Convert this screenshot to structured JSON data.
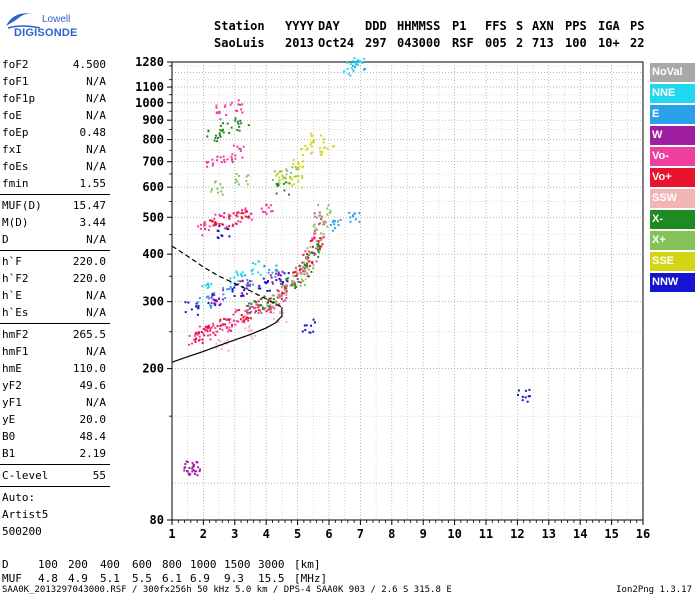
{
  "logo": {
    "line1": "Lowell",
    "line2": "DIGISONDE"
  },
  "header": {
    "labels": [
      "Station",
      "YYYY",
      "DAY",
      "DDD",
      "HHMMSS",
      "P1",
      "FFS",
      "S",
      "AXN",
      "PPS",
      "IGA",
      "PS"
    ],
    "values": [
      "SaoLuis",
      "2013",
      "Oct24",
      "297",
      "043000",
      "RSF",
      "005",
      "2",
      "713",
      "100",
      "10+",
      "22"
    ]
  },
  "params": {
    "group1": [
      {
        "label": "foF2",
        "value": "4.500"
      },
      {
        "label": "foF1",
        "value": "N/A"
      },
      {
        "label": "foF1p",
        "value": "N/A"
      },
      {
        "label": "foE",
        "value": "N/A"
      },
      {
        "label": "foEp",
        "value": "0.48"
      },
      {
        "label": "fxI",
        "value": "N/A"
      },
      {
        "label": "foEs",
        "value": "N/A"
      },
      {
        "label": "fmin",
        "value": "1.55"
      }
    ],
    "group2": [
      {
        "label": "MUF(D)",
        "value": "15.47"
      },
      {
        "label": "M(D)",
        "value": "3.44"
      },
      {
        "label": "D",
        "value": "N/A"
      }
    ],
    "group3": [
      {
        "label": "h`F",
        "value": "220.0"
      },
      {
        "label": "h`F2",
        "value": "220.0"
      },
      {
        "label": "h`E",
        "value": "N/A"
      },
      {
        "label": "h`Es",
        "value": "N/A"
      }
    ],
    "group4": [
      {
        "label": "hmF2",
        "value": "265.5"
      },
      {
        "label": "hmF1",
        "value": "N/A"
      },
      {
        "label": "hmE",
        "value": "110.0"
      },
      {
        "label": "yF2",
        "value": "49.6"
      },
      {
        "label": "yF1",
        "value": "N/A"
      },
      {
        "label": "yE",
        "value": "20.0"
      },
      {
        "label": "B0",
        "value": "48.4"
      },
      {
        "label": "B1",
        "value": "2.19"
      }
    ],
    "group5": [
      {
        "label": "C-level",
        "value": "55"
      }
    ],
    "text": [
      "Auto:",
      "Artist5",
      "500200"
    ]
  },
  "legend": [
    {
      "label": "NoVal",
      "color": "#a8a8a8"
    },
    {
      "label": "NNE",
      "color": "#22d8f0"
    },
    {
      "label": "E",
      "color": "#2aa0ea"
    },
    {
      "label": "W",
      "color": "#a01ea0"
    },
    {
      "label": "Vo-",
      "color": "#ee3fa0"
    },
    {
      "label": "Vo+",
      "color": "#e8142e"
    },
    {
      "label": "SSW",
      "color": "#f2b4b4"
    },
    {
      "label": "X-",
      "color": "#1f8a1f"
    },
    {
      "label": "X+",
      "color": "#86c25a"
    },
    {
      "label": "SSE",
      "color": "#d4d414"
    },
    {
      "label": "NNW",
      "color": "#1414d2"
    }
  ],
  "chart_data": {
    "type": "scatter",
    "title": "",
    "xlabel": "",
    "ylabel": "",
    "x_unit_hint": "",
    "xlim": [
      1,
      16
    ],
    "ylim": [
      80,
      1280
    ],
    "y_scale": "log",
    "xticks": [
      1,
      2,
      3,
      4,
      5,
      6,
      7,
      8,
      9,
      10,
      11,
      12,
      13,
      14,
      15,
      16
    ],
    "yticks": [
      80,
      200,
      300,
      400,
      500,
      600,
      700,
      800,
      900,
      1000,
      1100,
      1280
    ],
    "grid": true,
    "series": [
      {
        "color": "#ee3fa0",
        "points": [
          [
            1.7,
            240
          ],
          [
            2.0,
            250
          ],
          [
            2.3,
            255
          ],
          [
            2.6,
            262
          ],
          [
            2.9,
            268
          ],
          [
            3.2,
            275
          ],
          [
            3.5,
            282
          ],
          [
            3.8,
            292
          ],
          [
            4.1,
            300
          ],
          [
            4.4,
            310
          ],
          [
            4.7,
            330
          ],
          [
            5.1,
            360
          ],
          [
            5.4,
            400
          ],
          [
            5.6,
            450
          ],
          [
            5.7,
            500
          ],
          [
            2.0,
            470
          ],
          [
            2.5,
            490
          ],
          [
            3.0,
            500
          ],
          [
            3.5,
            515
          ],
          [
            4.0,
            530
          ],
          [
            2.3,
            700
          ],
          [
            2.7,
            720
          ],
          [
            3.1,
            745
          ],
          [
            2.6,
            950
          ],
          [
            3.0,
            980
          ]
        ]
      },
      {
        "color": "#e8142e",
        "points": [
          [
            1.8,
            245
          ],
          [
            2.2,
            252
          ],
          [
            2.7,
            263
          ],
          [
            3.3,
            278
          ],
          [
            3.9,
            295
          ],
          [
            4.5,
            318
          ],
          [
            5.0,
            350
          ],
          [
            5.3,
            390
          ],
          [
            5.6,
            430
          ],
          [
            2.2,
            480
          ],
          [
            2.8,
            495
          ],
          [
            3.3,
            505
          ]
        ]
      },
      {
        "color": "#86c25a",
        "points": [
          [
            4.2,
            305
          ],
          [
            4.6,
            325
          ],
          [
            5.0,
            345
          ],
          [
            5.3,
            380
          ],
          [
            5.5,
            420
          ],
          [
            5.7,
            470
          ],
          [
            5.8,
            520
          ],
          [
            2.4,
            600
          ],
          [
            3.2,
            630
          ],
          [
            4.4,
            650
          ],
          [
            4.8,
            660
          ]
        ]
      },
      {
        "color": "#1f8a1f",
        "points": [
          [
            3.6,
            290
          ],
          [
            4.0,
            300
          ],
          [
            4.8,
            335
          ],
          [
            5.2,
            365
          ],
          [
            5.5,
            410
          ],
          [
            2.3,
            830
          ],
          [
            2.7,
            860
          ],
          [
            3.2,
            880
          ],
          [
            4.5,
            600
          ]
        ]
      },
      {
        "color": "#2aa0ea",
        "points": [
          [
            2.0,
            300
          ],
          [
            2.8,
            320
          ],
          [
            3.4,
            340
          ],
          [
            4.1,
            360
          ],
          [
            6.2,
            480
          ],
          [
            6.8,
            510
          ],
          [
            6.9,
            1250
          ]
        ]
      },
      {
        "color": "#22d8f0",
        "points": [
          [
            2.1,
            330
          ],
          [
            3.0,
            350
          ],
          [
            3.7,
            370
          ],
          [
            6.6,
            1230
          ],
          [
            6.9,
            1265
          ]
        ]
      },
      {
        "color": "#1414d2",
        "points": [
          [
            1.6,
            290
          ],
          [
            2.3,
            305
          ],
          [
            3.1,
            320
          ],
          [
            3.9,
            335
          ],
          [
            4.5,
            345
          ],
          [
            12.2,
            170
          ],
          [
            5.3,
            260
          ],
          [
            2.6,
            460
          ]
        ]
      },
      {
        "color": "#a01ea0",
        "points": [
          [
            2.4,
            310
          ],
          [
            3.3,
            330
          ],
          [
            4.3,
            348
          ],
          [
            1.5,
            110
          ],
          [
            1.6,
            110
          ],
          [
            1.7,
            110
          ]
        ]
      },
      {
        "color": "#d4d414",
        "points": [
          [
            4.5,
            630
          ],
          [
            5.0,
            700
          ],
          [
            5.3,
            760
          ],
          [
            5.6,
            800
          ],
          [
            5.9,
            760
          ],
          [
            4.9,
            620
          ]
        ]
      },
      {
        "color": "#f2b4b4",
        "points": [
          [
            2.6,
            230
          ],
          [
            3.4,
            250
          ],
          [
            4.4,
            275
          ],
          [
            5.1,
            360
          ]
        ]
      }
    ],
    "profile_lines": [
      {
        "style": "solid",
        "points": [
          [
            1.0,
            208
          ],
          [
            1.5,
            215
          ],
          [
            2.0,
            222
          ],
          [
            2.5,
            230
          ],
          [
            3.0,
            238
          ],
          [
            3.5,
            246
          ],
          [
            4.0,
            256
          ],
          [
            4.3,
            264
          ],
          [
            4.5,
            275
          ],
          [
            4.5,
            290
          ]
        ]
      },
      {
        "style": "dashed",
        "points": [
          [
            1.0,
            420
          ],
          [
            1.5,
            395
          ],
          [
            2.0,
            370
          ],
          [
            2.5,
            350
          ],
          [
            3.0,
            335
          ],
          [
            3.5,
            320
          ],
          [
            4.0,
            305
          ],
          [
            4.5,
            290
          ]
        ]
      }
    ]
  },
  "dmuf": {
    "d_label": "D",
    "muf_label": "MUF",
    "d_values": [
      "100",
      "200",
      "400",
      "600",
      "800",
      "1000",
      "1500",
      "3000",
      "[km]"
    ],
    "muf_values": [
      "4.8",
      "4.9",
      "5.1",
      "5.5",
      "6.1",
      "6.9",
      "9.3",
      "15.5",
      "[MHz]"
    ]
  },
  "footer": {
    "left": "SAA0K_2013297043000.RSF / 300fx256h 50 kHz 5.0 km / DPS-4 SAA0K 903 / 2.6 S 315.8 E",
    "right": "Ion2Png 1.3.17"
  }
}
